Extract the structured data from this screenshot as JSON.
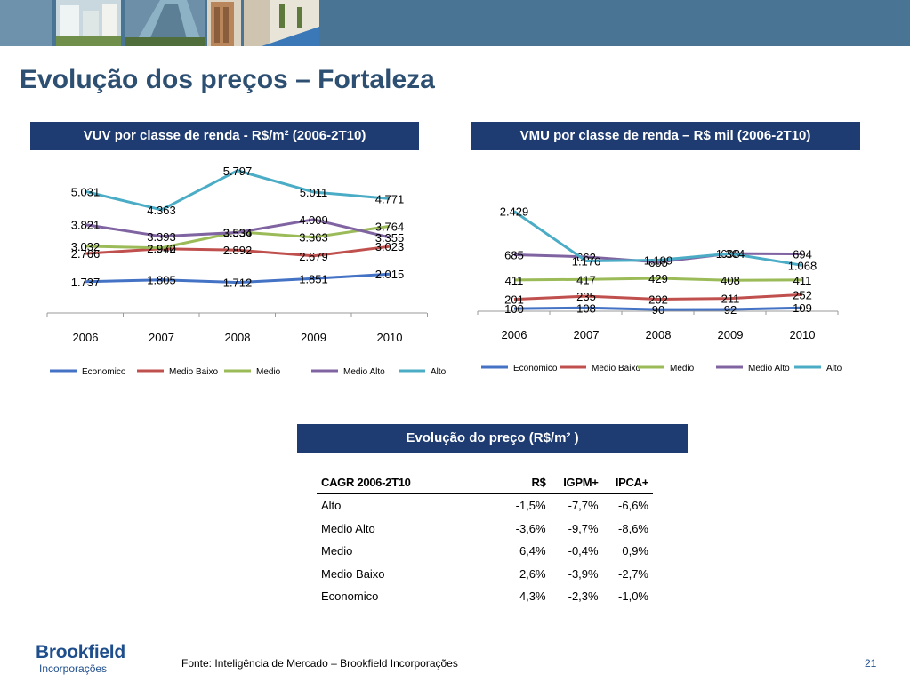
{
  "header": {
    "title": "Evolução dos preços – Fortaleza"
  },
  "colors": {
    "header_band": "#4a7493",
    "box_title_bg": "#1e3c72",
    "title_text": "#2d4f72",
    "series": {
      "Economico": "#4472c4",
      "Medio Baixo": "#c0504d",
      "Medio": "#9bbb59",
      "Medio Alto": "#8064a2",
      "Alto": "#4bacc6"
    }
  },
  "chart_data": [
    {
      "type": "line",
      "title": "VUV por classe de renda - R$/m² (2006-2T10)",
      "categories": [
        "2006",
        "2007",
        "2008",
        "2009",
        "2010"
      ],
      "series": [
        {
          "name": "Economico",
          "values": [
            1737,
            1805,
            1712,
            1851,
            2015
          ],
          "labels": [
            "1.737",
            "1.805",
            "1.712",
            "1.851",
            "2.015"
          ]
        },
        {
          "name": "Medio Baixo",
          "values": [
            2766,
            2940,
            2892,
            2679,
            3023
          ],
          "labels": [
            "2.766",
            "2.940",
            "2.892",
            "2.679",
            "3.023"
          ]
        },
        {
          "name": "Medio",
          "values": [
            3032,
            2972,
            3556,
            3363,
            3764
          ],
          "labels": [
            "3.032",
            "2.972",
            "3.556",
            "3.363",
            "3.764"
          ]
        },
        {
          "name": "Medio Alto",
          "values": [
            3821,
            3393,
            3534,
            4009,
            3355
          ],
          "labels": [
            "3.821",
            "3.393",
            "3.534",
            "4.009",
            "3.355"
          ]
        },
        {
          "name": "Alto",
          "values": [
            5031,
            4363,
            5797,
            5011,
            4771
          ],
          "labels": [
            "5.031",
            "4.363",
            "5.797",
            "5.011",
            "4.771"
          ]
        }
      ],
      "legend_position": "bottom",
      "grid": false
    },
    {
      "type": "line",
      "title": "VMU por classe de renda – R$ mil  (2006-2T10)",
      "categories": [
        "2006",
        "2007",
        "2008",
        "2009",
        "2010"
      ],
      "series": [
        {
          "name": "Economico",
          "values": [
            100,
            108,
            90,
            92,
            109
          ],
          "labels": [
            "100",
            "108",
            "90",
            "92",
            "109"
          ]
        },
        {
          "name": "Medio Baixo",
          "values": [
            201,
            235,
            202,
            211,
            252
          ],
          "labels": [
            "201",
            "235",
            "202",
            "211",
            "252"
          ]
        },
        {
          "name": "Medio",
          "values": [
            411,
            417,
            429,
            408,
            411
          ],
          "labels": [
            "411",
            "417",
            "429",
            "408",
            "411"
          ]
        },
        {
          "name": "Medio Alto",
          "values": [
            685,
            662,
            605,
            698,
            694
          ],
          "labels": [
            "685",
            "662",
            "605",
            "698",
            "694"
          ]
        },
        {
          "name": "Alto",
          "values": [
            2429,
            1176,
            1199,
            1364,
            1068
          ],
          "labels": [
            "2.429",
            "1.176",
            "1.199",
            "1.364",
            "1.068"
          ]
        }
      ],
      "legend_position": "bottom",
      "grid": false
    }
  ],
  "table": {
    "title": "Evolução do preço (R$/m² )",
    "headers": [
      "CAGR 2006-2T10",
      "R$",
      "IGPM+",
      "IPCA+"
    ],
    "rows": [
      [
        "Alto",
        "-1,5%",
        "-7,7%",
        "-6,6%"
      ],
      [
        "Medio Alto",
        "-3,6%",
        "-9,7%",
        "-8,6%"
      ],
      [
        "Medio",
        "6,4%",
        "-0,4%",
        "0,9%"
      ],
      [
        "Medio Baixo",
        "2,6%",
        "-3,9%",
        "-2,7%"
      ],
      [
        "Economico",
        "4,3%",
        "-2,3%",
        "-1,0%"
      ]
    ]
  },
  "footer": {
    "logo_name": "Brookfield",
    "logo_sub": "Incorporações",
    "source": "Fonte: Inteligência de Mercado – Brookfield Incorporações",
    "page_number": "21"
  }
}
